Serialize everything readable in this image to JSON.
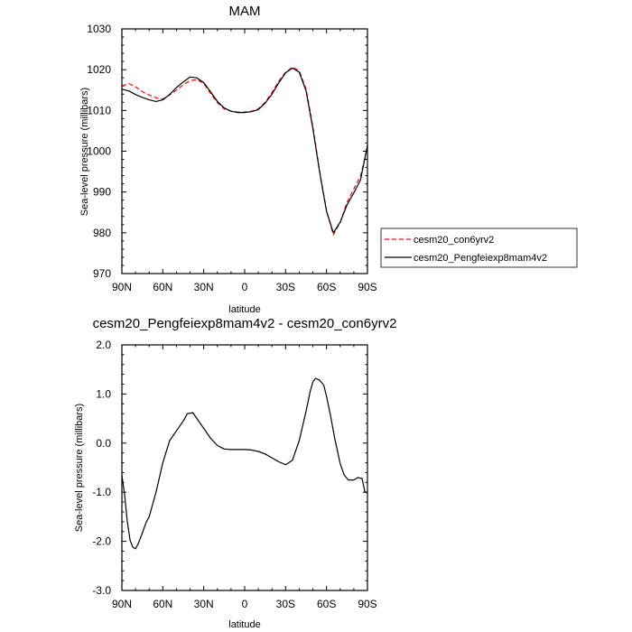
{
  "chart_data": [
    {
      "type": "line",
      "title": "MAM",
      "xlabel": "latitude",
      "ylabel": "Sea-level pressure (millibars)",
      "x_ticks": [
        {
          "value": 90,
          "label": "90N"
        },
        {
          "value": 60,
          "label": "60N"
        },
        {
          "value": 30,
          "label": "30N"
        },
        {
          "value": 0,
          "label": "0"
        },
        {
          "value": -30,
          "label": "30S"
        },
        {
          "value": -60,
          "label": "60S"
        },
        {
          "value": -90,
          "label": "90S"
        }
      ],
      "xlim": [
        90,
        -90
      ],
      "ylim": [
        970,
        1030
      ],
      "y_ticks": [
        970,
        980,
        990,
        1000,
        1010,
        1020,
        1030
      ],
      "legend_position": "right, outside",
      "series": [
        {
          "name": "cesm20_con6yrv2",
          "color": "#ff0000",
          "dash": "dashed",
          "x": [
            90,
            85,
            80,
            75,
            70,
            65,
            60,
            55,
            50,
            45,
            40,
            35,
            30,
            25,
            20,
            15,
            10,
            5,
            0,
            -5,
            -10,
            -15,
            -20,
            -25,
            -30,
            -35,
            -40,
            -45,
            -50,
            -55,
            -60,
            -65,
            -70,
            -75,
            -80,
            -85,
            -90
          ],
          "values": [
            1016.0,
            1016.6,
            1015.8,
            1014.6,
            1013.8,
            1013.1,
            1012.8,
            1013.8,
            1015.0,
            1016.3,
            1017.3,
            1017.6,
            1016.6,
            1014.2,
            1011.9,
            1010.4,
            1009.8,
            1009.6,
            1009.6,
            1009.8,
            1010.4,
            1012.0,
            1014.4,
            1017.2,
            1019.4,
            1020.6,
            1019.8,
            1015.2,
            1006.0,
            995.0,
            985.5,
            979.5,
            982.5,
            987.5,
            990.8,
            994.0,
            1001.0
          ]
        },
        {
          "name": "cesm20_Pengfeiexp8mam4v2",
          "color": "#000000",
          "dash": "solid",
          "x": [
            90,
            85,
            80,
            75,
            70,
            65,
            60,
            55,
            50,
            45,
            40,
            35,
            30,
            25,
            20,
            15,
            10,
            5,
            0,
            -5,
            -10,
            -15,
            -20,
            -25,
            -30,
            -35,
            -40,
            -45,
            -50,
            -55,
            -60,
            -65,
            -70,
            -75,
            -80,
            -85,
            -90
          ],
          "values": [
            1015.2,
            1014.8,
            1013.9,
            1013.2,
            1012.6,
            1012.2,
            1012.6,
            1013.9,
            1015.6,
            1017.0,
            1018.2,
            1018.0,
            1016.8,
            1014.6,
            1012.2,
            1010.6,
            1009.8,
            1009.5,
            1009.5,
            1009.7,
            1010.2,
            1011.8,
            1014.0,
            1016.8,
            1019.2,
            1020.4,
            1019.4,
            1014.8,
            1005.5,
            994.8,
            985.2,
            980.0,
            982.6,
            986.8,
            989.8,
            993.0,
            1001.5
          ]
        }
      ]
    },
    {
      "type": "line",
      "title": "cesm20_Pengfeiexp8mam4v2 - cesm20_con6yrv2",
      "xlabel": "latitude",
      "ylabel": "Sea-level pressure (millibars)",
      "x_ticks": [
        {
          "value": 90,
          "label": "90N"
        },
        {
          "value": 60,
          "label": "60N"
        },
        {
          "value": 30,
          "label": "30N"
        },
        {
          "value": 0,
          "label": "0"
        },
        {
          "value": -30,
          "label": "30S"
        },
        {
          "value": -60,
          "label": "60S"
        },
        {
          "value": -90,
          "label": "90S"
        }
      ],
      "xlim": [
        90,
        -90
      ],
      "ylim": [
        -3.0,
        2.0
      ],
      "y_ticks": [
        {
          "value": 2.0,
          "label": "2.0"
        },
        {
          "value": 1.0,
          "label": "1.0"
        },
        {
          "value": 0.0,
          "label": "0.0"
        },
        {
          "value": -1.0,
          "label": "-1.0"
        },
        {
          "value": -2.0,
          "label": "-2.0"
        },
        {
          "value": -3.0,
          "label": "-3.0"
        }
      ],
      "series": [
        {
          "color": "#000000",
          "dash": "solid",
          "x": [
            90,
            88,
            86,
            84,
            82,
            80,
            78,
            76,
            74,
            72,
            70,
            65,
            60,
            55,
            50,
            45,
            42,
            38,
            35,
            30,
            25,
            20,
            15,
            10,
            5,
            0,
            -5,
            -10,
            -15,
            -20,
            -25,
            -30,
            -35,
            -40,
            -45,
            -48,
            -50,
            -52,
            -55,
            -58,
            -60,
            -63,
            -66,
            -70,
            -73,
            -76,
            -80,
            -83,
            -86,
            -88,
            -90
          ],
          "values": [
            -0.65,
            -1.05,
            -1.6,
            -1.98,
            -2.12,
            -2.15,
            -2.05,
            -1.9,
            -1.75,
            -1.6,
            -1.5,
            -1.0,
            -0.4,
            0.05,
            0.25,
            0.45,
            0.6,
            0.62,
            0.5,
            0.3,
            0.1,
            -0.05,
            -0.12,
            -0.13,
            -0.13,
            -0.13,
            -0.14,
            -0.17,
            -0.22,
            -0.3,
            -0.38,
            -0.44,
            -0.35,
            0.05,
            0.65,
            1.05,
            1.25,
            1.32,
            1.28,
            1.18,
            0.95,
            0.55,
            0.1,
            -0.42,
            -0.65,
            -0.75,
            -0.75,
            -0.7,
            -0.72,
            -0.98,
            -1.02
          ]
        }
      ]
    }
  ]
}
